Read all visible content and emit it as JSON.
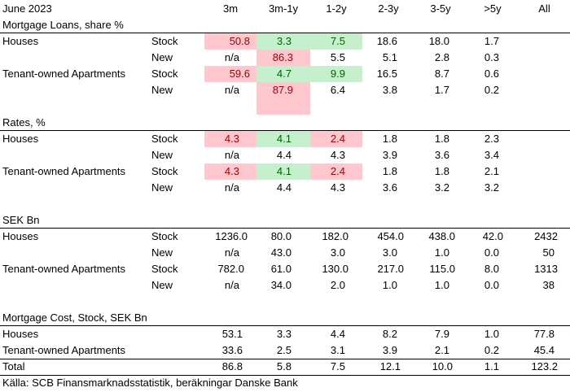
{
  "header": {
    "date": "June 2023",
    "columns": [
      "3m",
      "3m-1y",
      "1-2y",
      "2-3y",
      "3-5y",
      ">5y",
      "All"
    ]
  },
  "sections": [
    {
      "title": "Mortgage Loans, share %",
      "rows": [
        {
          "label": "Houses",
          "sub": "Stock",
          "values": [
            "50.8",
            "3.3",
            "7.5",
            "18.6",
            "18.0",
            "1.7",
            ""
          ]
        },
        {
          "label": "",
          "sub": "New",
          "values": [
            "n/a",
            "86.3",
            "5.5",
            "5.1",
            "2.8",
            "0.3",
            ""
          ]
        },
        {
          "label": "Tenant-owned Apartments",
          "sub": "Stock",
          "values": [
            "59.6",
            "4.7",
            "9.9",
            "16.5",
            "8.7",
            "0.6",
            ""
          ]
        },
        {
          "label": "",
          "sub": "New",
          "values": [
            "n/a",
            "87.9",
            "6.4",
            "3.8",
            "1.7",
            "0.2",
            ""
          ]
        }
      ]
    },
    {
      "title": "Rates, %",
      "rows": [
        {
          "label": "Houses",
          "sub": "Stock",
          "values": [
            "4.3",
            "4.1",
            "2.4",
            "1.8",
            "1.8",
            "2.3",
            ""
          ]
        },
        {
          "label": "",
          "sub": "New",
          "values": [
            "n/a",
            "4.4",
            "4.3",
            "3.9",
            "3.6",
            "3.4",
            ""
          ]
        },
        {
          "label": "Tenant-owned Apartments",
          "sub": "Stock",
          "values": [
            "4.3",
            "4.1",
            "2.4",
            "1.8",
            "1.8",
            "2.1",
            ""
          ]
        },
        {
          "label": "",
          "sub": "New",
          "values": [
            "n/a",
            "4.4",
            "4.3",
            "3.6",
            "3.2",
            "3.2",
            ""
          ]
        }
      ]
    },
    {
      "title": "SEK Bn",
      "rows": [
        {
          "label": "Houses",
          "sub": "Stock",
          "values": [
            "1236.0",
            "80.0",
            "182.0",
            "454.0",
            "438.0",
            "42.0",
            "2432"
          ]
        },
        {
          "label": "",
          "sub": "New",
          "values": [
            "n/a",
            "43.0",
            "3.0",
            "3.0",
            "1.0",
            "0.0",
            "50"
          ]
        },
        {
          "label": "Tenant-owned Apartments",
          "sub": "Stock",
          "values": [
            "782.0",
            "61.0",
            "130.0",
            "217.0",
            "115.0",
            "8.0",
            "1313"
          ]
        },
        {
          "label": "",
          "sub": "New",
          "values": [
            "n/a",
            "34.0",
            "2.0",
            "1.0",
            "1.0",
            "0.0",
            "38"
          ]
        }
      ]
    },
    {
      "title": "Mortgage Cost, Stock, SEK Bn",
      "rows": [
        {
          "label": "Houses",
          "sub": "",
          "values": [
            "53.1",
            "3.3",
            "4.4",
            "8.2",
            "7.9",
            "1.0",
            "77.8"
          ]
        },
        {
          "label": "Tenant-owned Apartments",
          "sub": "",
          "values": [
            "33.6",
            "2.5",
            "3.1",
            "3.9",
            "2.1",
            "0.2",
            "45.4"
          ]
        },
        {
          "label": "Total",
          "sub": "",
          "values": [
            "86.8",
            "5.8",
            "7.5",
            "12.1",
            "10.0",
            "1.1",
            "123.2"
          ]
        }
      ]
    }
  ],
  "footer": {
    "source": "Källa: SCB Finansmarknadsstatistik, beräkningar Danske Bank"
  },
  "colors": {
    "highlight_pink": "#ffc7ce",
    "highlight_pink_text": "#9c0006",
    "highlight_green": "#c6efce",
    "highlight_green_text": "#006100"
  }
}
